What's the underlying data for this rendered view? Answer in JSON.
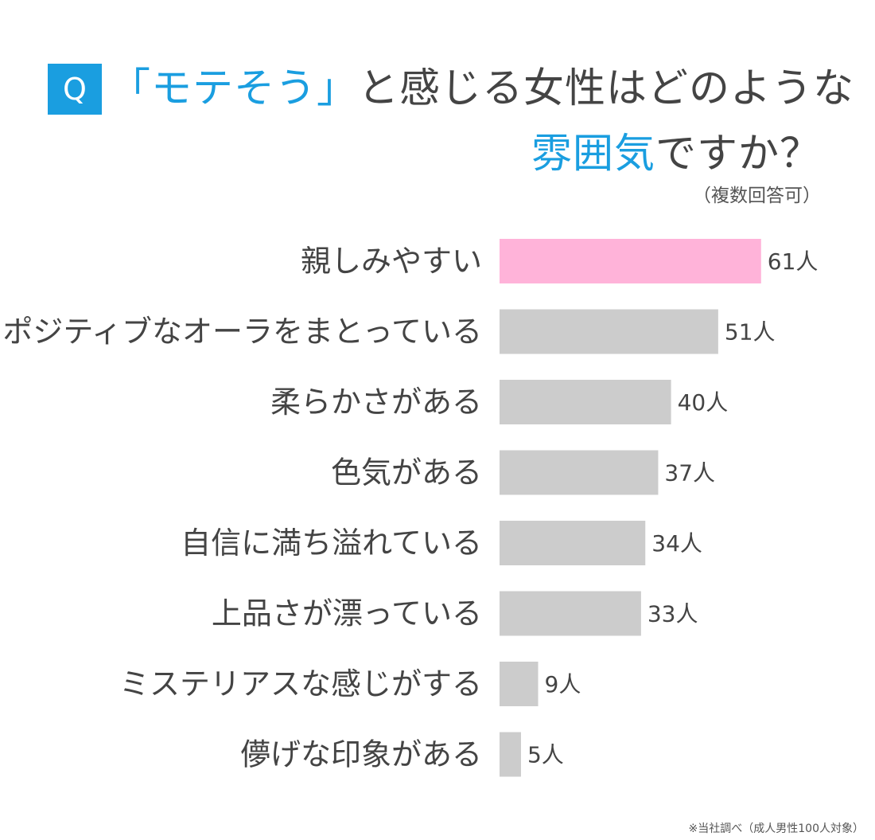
{
  "question": {
    "badge": "Q",
    "line1_accent": "「モテそう」",
    "line1_rest": "と感じる女性はどのような",
    "line2_accent": "雰囲気",
    "line2_rest": "ですか？",
    "subtitle": "（複数回答可）"
  },
  "footnote": "※当社調べ（成人男性100人対象）",
  "colors": {
    "accent": "#1a9ee0",
    "highlight_bar": "#ffb3d9",
    "bar": "#cccccc"
  },
  "chart_data": {
    "type": "bar",
    "orientation": "horizontal",
    "unit": "人",
    "highlight_index": 0,
    "categories": [
      "親しみやすい",
      "ポジティブなオーラをまとっている",
      "柔らかさがある",
      "色気がある",
      "自信に満ち溢れている",
      "上品さが漂っている",
      "ミステリアスな感じがする",
      "儚げな印象がある"
    ],
    "values": [
      61,
      51,
      40,
      37,
      34,
      33,
      9,
      5
    ],
    "value_labels": [
      "61人",
      "51人",
      "40人",
      "37人",
      "34人",
      "33人",
      "9人",
      "5人"
    ]
  }
}
